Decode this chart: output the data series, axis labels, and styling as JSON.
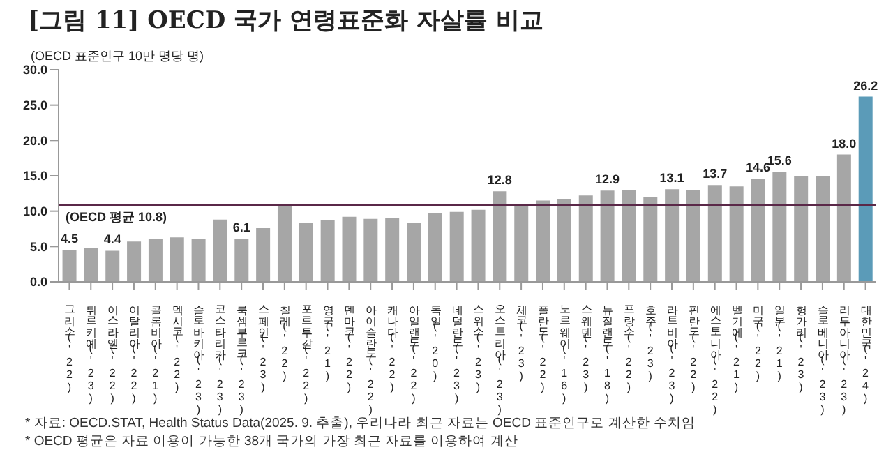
{
  "chart_data": {
    "type": "bar",
    "title": "[그림 11] OECD 국가 연령표준화 자살률 비교",
    "ylabel": "(OECD 표준인구 10만 명당 명)",
    "categories": [
      "그리스('22)",
      "튀르키예('23)",
      "이스라엘('22)",
      "이탈리아('22)",
      "콜롬비아('21)",
      "멕시코('22)",
      "슬로바키아('23)",
      "코스타리카('23)",
      "룩셈부르크('23)",
      "스페인('23)",
      "칠레('22)",
      "포르투갈('22)",
      "영국('21)",
      "덴마크('22)",
      "아이슬란드('22)",
      "캐나다('22)",
      "아일랜드('22)",
      "독일('20)",
      "네덜란드('23)",
      "스위스('23)",
      "오스트리아('23)",
      "체코('23)",
      "폴란드('22)",
      "노르웨이('16)",
      "스웨덴('23)",
      "뉴질랜드('18)",
      "프랑스('22)",
      "호주('23)",
      "라트비아('23)",
      "핀란드('22)",
      "에스토니아('22)",
      "벨기에('21)",
      "미국('22)",
      "일본('21)",
      "헝가리('23)",
      "슬로베니아('23)",
      "리투아니아('23)",
      "대한민국('24)"
    ],
    "values": [
      4.5,
      4.8,
      4.4,
      5.7,
      6.1,
      6.3,
      6.1,
      8.8,
      6.1,
      7.6,
      10.8,
      8.3,
      8.7,
      9.2,
      8.9,
      9.0,
      8.4,
      9.7,
      9.9,
      10.2,
      12.8,
      10.7,
      11.5,
      11.7,
      12.2,
      12.9,
      13.0,
      12.0,
      13.1,
      13.0,
      13.7,
      13.5,
      14.6,
      15.6,
      15.0,
      15.0,
      18.0,
      26.2
    ],
    "value_labels": [
      "4.5",
      null,
      "4.4",
      null,
      null,
      null,
      null,
      null,
      "6.1",
      null,
      null,
      null,
      null,
      null,
      null,
      null,
      null,
      null,
      null,
      null,
      "12.8",
      null,
      null,
      null,
      null,
      "12.9",
      null,
      null,
      "13.1",
      null,
      "13.7",
      null,
      "14.6",
      "15.6",
      null,
      null,
      "18.0",
      "26.2"
    ],
    "colors": [
      "#a6a6a6",
      "#a6a6a6",
      "#a6a6a6",
      "#a6a6a6",
      "#a6a6a6",
      "#a6a6a6",
      "#a6a6a6",
      "#a6a6a6",
      "#a6a6a6",
      "#a6a6a6",
      "#a6a6a6",
      "#a6a6a6",
      "#a6a6a6",
      "#a6a6a6",
      "#a6a6a6",
      "#a6a6a6",
      "#a6a6a6",
      "#a6a6a6",
      "#a6a6a6",
      "#a6a6a6",
      "#a6a6a6",
      "#a6a6a6",
      "#a6a6a6",
      "#a6a6a6",
      "#a6a6a6",
      "#a6a6a6",
      "#a6a6a6",
      "#a6a6a6",
      "#a6a6a6",
      "#a6a6a6",
      "#a6a6a6",
      "#a6a6a6",
      "#a6a6a6",
      "#a6a6a6",
      "#a6a6a6",
      "#a6a6a6",
      "#a6a6a6",
      "#5b9bb8"
    ],
    "ylim": [
      0,
      30
    ],
    "yticks": [
      {
        "value": 0,
        "label": "0.0"
      },
      {
        "value": 5,
        "label": "5.0"
      },
      {
        "value": 10,
        "label": "10.0"
      },
      {
        "value": 15,
        "label": "15.0"
      },
      {
        "value": 20,
        "label": "20.0"
      },
      {
        "value": 25,
        "label": "25.0"
      },
      {
        "value": 30,
        "label": "30.0"
      }
    ],
    "grid": false,
    "ref_lines": [
      {
        "axis": "y",
        "value": 10.8,
        "label": "(OECD 평균 10.8)",
        "color": "#5a2848"
      }
    ],
    "annotations": [
      "* 자료: OECD.STAT, Health Status Data(2025. 9. 추출), 우리나라 최근 자료는 OECD 표준인구로 계산한 수치임",
      "* OECD 평균은 자료 이용이 가능한 38개 국가의 가장 최근 자료를 이용하여 계산"
    ]
  }
}
